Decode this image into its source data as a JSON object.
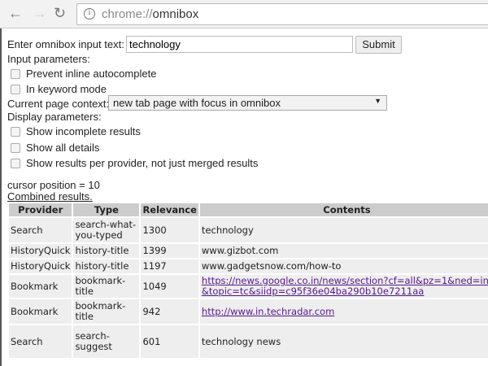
{
  "browser": {
    "url_prefix": "chrome://",
    "url_host": "omnibox",
    "back": "←",
    "forward": "→",
    "reload": "↻",
    "info": "i"
  },
  "form": {
    "input_label": "Enter omnibox input text:",
    "input_value": "technology",
    "submit_label": "Submit",
    "input_params_label": "Input parameters:",
    "prevent_inline": "Prevent inline autocomplete",
    "keyword_mode": "In keyword mode",
    "context_label": "Current page context:",
    "context_value": "new tab page with focus in omnibox",
    "display_params_label": "Display parameters:",
    "show_incomplete": "Show incomplete results",
    "show_details": "Show all details",
    "show_per_provider": "Show results per provider, not just merged results"
  },
  "status": {
    "cursor": "cursor position = 10",
    "combined": "Combined results."
  },
  "table": {
    "headers": [
      "Provider",
      "Type",
      "Relevance",
      "Contents"
    ],
    "rows": [
      {
        "provider": "Search",
        "type": "search-what-you-typed",
        "relevance": "1300",
        "contents": "technology",
        "link": false
      },
      {
        "provider": "HistoryQuick",
        "type": "history-title",
        "relevance": "1399",
        "contents": "www.gizbot.com",
        "link": false
      },
      {
        "provider": "HistoryQuick",
        "type": "history-title",
        "relevance": "1197",
        "contents": "www.gadgetsnow.com/how-to",
        "link": false
      },
      {
        "provider": "Bookmark",
        "type": "bookmark-title",
        "relevance": "1049",
        "contents": "https://news.google.co.in/news/section?cf=all&pz=1&ned=in&topic=tc&siidp=c95f36e04ba290b10e7211aa",
        "link": true
      },
      {
        "provider": "Bookmark",
        "type": "bookmark-title",
        "relevance": "942",
        "contents": "http://www.in.techradar.com",
        "link": true
      },
      {
        "provider": "Search",
        "type": "search-suggest",
        "relevance": "601",
        "contents": "technology news",
        "link": false
      }
    ]
  }
}
